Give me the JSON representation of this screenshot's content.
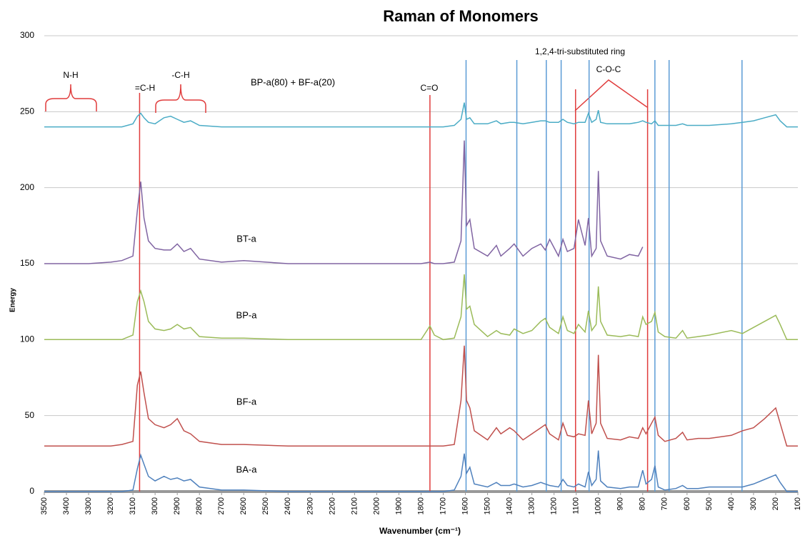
{
  "chart_data": {
    "type": "line",
    "title": "Raman of Monomers",
    "x_label": "Wavenumber (cm⁻¹)",
    "y_label": "Energy",
    "xlim": [
      3500,
      100
    ],
    "ylim": [
      0,
      300
    ],
    "xticks": [
      3500,
      3400,
      3300,
      3200,
      3100,
      3000,
      2900,
      2800,
      2700,
      2600,
      2500,
      2400,
      2300,
      2200,
      2100,
      2000,
      1900,
      1800,
      1700,
      1600,
      1500,
      1400,
      1300,
      1200,
      1100,
      1000,
      900,
      800,
      700,
      600,
      500,
      400,
      300,
      200,
      100
    ],
    "yticks": [
      0,
      50,
      100,
      150,
      200,
      250,
      300
    ],
    "grid": true,
    "x": [
      3500,
      3300,
      3200,
      3150,
      3100,
      3080,
      3065,
      3050,
      3030,
      3000,
      2960,
      2930,
      2900,
      2870,
      2840,
      2800,
      2700,
      2600,
      2400,
      2000,
      1800,
      1760,
      1740,
      1700,
      1650,
      1620,
      1605,
      1595,
      1580,
      1560,
      1500,
      1460,
      1440,
      1400,
      1380,
      1340,
      1300,
      1260,
      1240,
      1220,
      1180,
      1160,
      1140,
      1110,
      1090,
      1060,
      1045,
      1030,
      1010,
      1000,
      990,
      960,
      900,
      860,
      820,
      800,
      785,
      760,
      745,
      730,
      700,
      650,
      620,
      600,
      550,
      500,
      400,
      350,
      300,
      250,
      200,
      180,
      150,
      100
    ],
    "series": [
      {
        "name": "BP-a(80) + BF-a(20)",
        "color": "#4bacc6",
        "values": [
          240,
          240,
          240,
          240,
          242,
          247,
          249,
          246,
          243,
          242,
          246,
          247,
          245,
          243,
          244,
          241,
          240,
          240,
          240,
          240,
          240,
          240,
          240,
          240,
          241,
          245,
          256,
          245,
          246,
          242,
          242,
          244,
          242,
          243,
          243,
          242,
          243,
          244,
          244,
          243,
          243,
          245,
          243,
          242,
          243,
          243,
          249,
          243,
          245,
          251,
          243,
          242,
          242,
          242,
          243,
          244,
          243,
          242,
          244,
          241,
          241,
          241,
          242,
          241,
          241,
          241,
          242,
          243,
          244,
          246,
          248,
          244,
          240,
          240
        ]
      },
      {
        "name": "BT-a",
        "color": "#8064a2",
        "values": [
          150,
          150,
          151,
          152,
          155,
          185,
          204,
          180,
          165,
          160,
          159,
          159,
          163,
          158,
          160,
          153,
          151,
          152,
          150,
          150,
          150,
          151,
          150,
          150,
          151,
          165,
          231,
          175,
          179,
          160,
          155,
          162,
          155,
          160,
          163,
          155,
          160,
          163,
          159,
          166,
          155,
          166,
          158,
          160,
          179,
          162,
          180,
          155,
          160,
          211,
          165,
          155,
          153,
          156,
          155,
          161,
          null,
          null,
          null,
          null,
          null,
          null,
          null,
          null,
          null,
          null,
          null,
          null,
          null,
          null,
          null,
          null,
          null,
          null
        ]
      },
      {
        "name": "BP-a",
        "color": "#9bbb59",
        "values": [
          100,
          100,
          100,
          100,
          103,
          125,
          132,
          125,
          112,
          107,
          106,
          107,
          110,
          107,
          108,
          102,
          101,
          101,
          100,
          100,
          100,
          109,
          103,
          100,
          101,
          115,
          143,
          120,
          122,
          110,
          102,
          106,
          104,
          103,
          107,
          104,
          106,
          112,
          114,
          108,
          104,
          115,
          106,
          104,
          110,
          105,
          119,
          106,
          110,
          135,
          112,
          103,
          102,
          103,
          102,
          115,
          110,
          112,
          118,
          105,
          102,
          101,
          106,
          101,
          102,
          103,
          106,
          104,
          108,
          112,
          116,
          110,
          100,
          100
        ]
      },
      {
        "name": "BF-a",
        "color": "#c0504d",
        "values": [
          30,
          30,
          30,
          31,
          33,
          70,
          79,
          65,
          48,
          44,
          42,
          44,
          48,
          40,
          38,
          33,
          31,
          31,
          30,
          30,
          30,
          30,
          30,
          30,
          31,
          60,
          96,
          60,
          55,
          40,
          34,
          42,
          38,
          42,
          40,
          34,
          38,
          42,
          44,
          38,
          34,
          45,
          37,
          36,
          38,
          37,
          60,
          38,
          45,
          90,
          45,
          35,
          34,
          36,
          35,
          42,
          38,
          45,
          49,
          37,
          33,
          35,
          39,
          34,
          35,
          35,
          37,
          40,
          42,
          48,
          55,
          45,
          30,
          30
        ]
      },
      {
        "name": "BA-a",
        "color": "#4f81bd",
        "values": [
          0,
          0,
          0,
          0,
          1,
          15,
          24,
          18,
          10,
          7,
          10,
          8,
          9,
          7,
          8,
          3,
          1,
          1,
          0,
          0,
          0,
          0,
          0,
          0,
          1,
          10,
          25,
          12,
          16,
          5,
          3,
          6,
          4,
          4,
          5,
          3,
          4,
          6,
          5,
          4,
          3,
          8,
          4,
          3,
          5,
          3,
          13,
          4,
          8,
          27,
          7,
          3,
          2,
          3,
          3,
          14,
          5,
          8,
          17,
          3,
          1,
          2,
          4,
          2,
          2,
          3,
          3,
          3,
          5,
          8,
          11,
          6,
          0,
          0
        ]
      }
    ],
    "annotations": [
      "N-H",
      "=C-H",
      "-C-H",
      "C=O",
      "1,2,4-tri-substituted ring",
      "C-O-C"
    ],
    "reference_lines": [
      {
        "x": 3070,
        "color": "#e03c3c"
      },
      {
        "x": 1760,
        "color": "#e03c3c"
      },
      {
        "x": 1103,
        "color": "#e03c3c"
      },
      {
        "x": 778,
        "color": "#e03c3c"
      },
      {
        "x": 1597,
        "color": "#5b9bd5"
      },
      {
        "x": 1368,
        "color": "#5b9bd5"
      },
      {
        "x": 1235,
        "color": "#5b9bd5"
      },
      {
        "x": 1168,
        "color": "#5b9bd5"
      },
      {
        "x": 1042,
        "color": "#5b9bd5"
      },
      {
        "x": 745,
        "color": "#5b9bd5"
      },
      {
        "x": 681,
        "color": "#5b9bd5"
      },
      {
        "x": 352,
        "color": "#5b9bd5"
      }
    ]
  }
}
